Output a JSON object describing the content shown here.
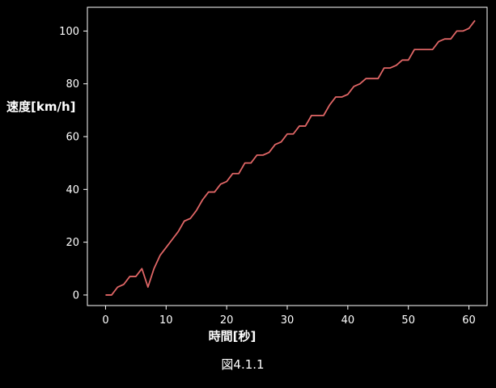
{
  "chart_data": {
    "type": "line",
    "title": "",
    "xlabel": "時間[秒]",
    "ylabel": "速度[km/h]",
    "caption": "図4.1.1",
    "xlim": [
      -3,
      63
    ],
    "ylim": [
      -4,
      109
    ],
    "xticks": [
      0,
      10,
      20,
      30,
      40,
      50,
      60
    ],
    "yticks": [
      0,
      20,
      40,
      60,
      80,
      100
    ],
    "grid": false,
    "line_color": "#e06666",
    "background_color": "#000000",
    "axis_color": "#ffffff",
    "series": [
      {
        "x": [
          0,
          1,
          2,
          3,
          4,
          5,
          6,
          7,
          8,
          9,
          10,
          11,
          12,
          13,
          14,
          15,
          16,
          17,
          18,
          19,
          20,
          21,
          22,
          23,
          24,
          25,
          26,
          27,
          28,
          29,
          30,
          31,
          32,
          33,
          34,
          35,
          36,
          37,
          38,
          39,
          40,
          41,
          42,
          43,
          44,
          45,
          46,
          47,
          48,
          49,
          50,
          51,
          52,
          53,
          54,
          55,
          56,
          57,
          58,
          59,
          60,
          61
        ],
        "y": [
          0,
          0,
          3,
          4,
          7,
          7,
          10,
          3,
          10,
          15,
          18,
          21,
          24,
          28,
          29,
          32,
          36,
          39,
          39,
          42,
          43,
          46,
          46,
          50,
          50,
          53,
          53,
          54,
          57,
          58,
          61,
          61,
          64,
          64,
          68,
          68,
          68,
          72,
          75,
          75,
          76,
          79,
          80,
          82,
          82,
          82,
          86,
          86,
          87,
          89,
          89,
          93,
          93,
          93,
          93,
          96,
          97,
          97,
          100,
          100,
          101,
          104
        ]
      }
    ]
  }
}
